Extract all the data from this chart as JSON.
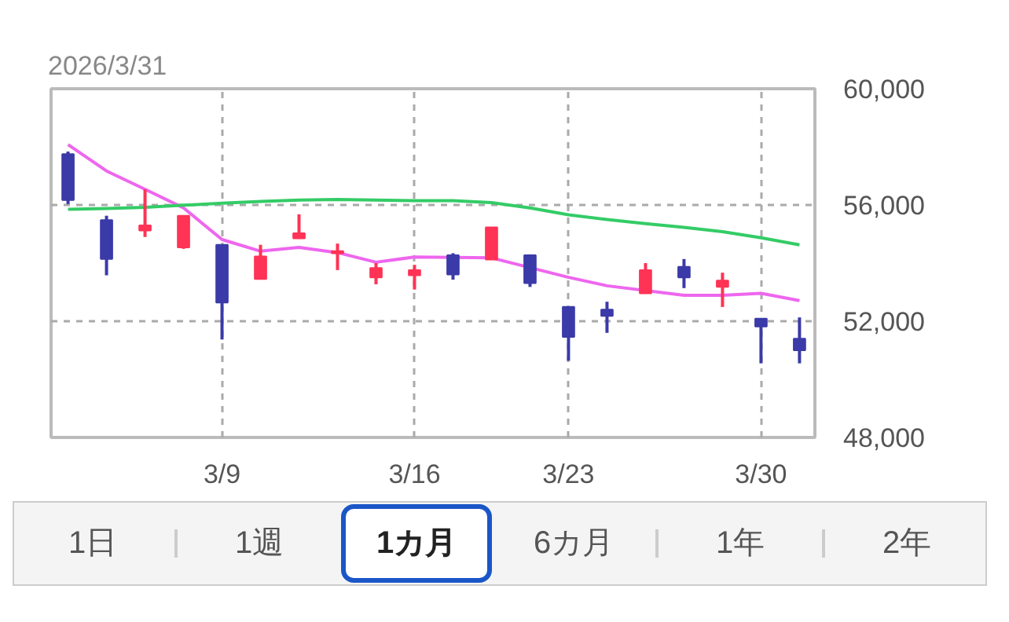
{
  "chart_data": {
    "type": "candlestick",
    "title": "2026/3/31",
    "annotations": [
      "1日",
      "1週",
      "1カ月",
      "6カ月",
      "1年",
      "2年"
    ],
    "categories": [
      null,
      null,
      null,
      null,
      "3/9",
      null,
      null,
      null,
      null,
      "3/16",
      null,
      null,
      null,
      "3/23",
      null,
      null,
      null,
      null,
      "3/30",
      null
    ],
    "ohlc": [
      [
        57750,
        57840,
        56030,
        56170
      ],
      [
        55480,
        55630,
        53580,
        54140
      ],
      [
        55120,
        56540,
        54900,
        55300
      ],
      [
        54540,
        55630,
        54490,
        55630
      ],
      [
        54630,
        54630,
        51370,
        52640
      ],
      [
        53450,
        54630,
        53450,
        54230
      ],
      [
        54850,
        55680,
        54850,
        55030
      ],
      [
        54340,
        54670,
        53760,
        54410
      ],
      [
        53510,
        54000,
        53270,
        53830
      ],
      [
        53580,
        53940,
        53090,
        53760
      ],
      [
        54270,
        54340,
        53430,
        53610
      ],
      [
        54120,
        55230,
        54120,
        55230
      ],
      [
        54270,
        54300,
        53180,
        53310
      ],
      [
        52490,
        52490,
        50640,
        51460
      ],
      [
        52400,
        52670,
        51600,
        52180
      ],
      [
        52960,
        54000,
        52960,
        53760
      ],
      [
        53870,
        54140,
        53140,
        53510
      ],
      [
        53180,
        53670,
        52490,
        53400
      ],
      [
        52090,
        52090,
        50550,
        51820
      ],
      [
        51400,
        52130,
        50550,
        51000
      ]
    ],
    "colors": [
      "#3a3aa8",
      "#3a3aa8",
      "#ff3355",
      "#ff3355",
      "#3a3aa8",
      "#ff3355",
      "#ff3355",
      "#ff3355",
      "#ff3355",
      "#ff3355",
      "#3a3aa8",
      "#ff3355",
      "#3a3aa8",
      "#3a3aa8",
      "#3a3aa8",
      "#ff3355",
      "#3a3aa8",
      "#ff3355",
      "#3a3aa8",
      "#3a3aa8"
    ],
    "series": [
      {
        "type": "line",
        "color": "#ee66ee",
        "values": [
          58080,
          57170,
          56540,
          55900,
          54810,
          54410,
          54540,
          54360,
          54030,
          54210,
          null,
          54180,
          null,
          53510,
          53220,
          null,
          52890,
          52890,
          52960,
          52710
        ]
      },
      {
        "type": "line",
        "color": "#33cc66",
        "values": [
          55850,
          55880,
          55920,
          55990,
          56060,
          56120,
          56170,
          56190,
          56170,
          56150,
          56150,
          56080,
          55900,
          55660,
          55500,
          55360,
          55230,
          55080,
          54870,
          54630
        ]
      }
    ],
    "ylim": [
      48000,
      60000
    ],
    "yticks": [
      {
        "value": 48000,
        "label": "48,000"
      },
      {
        "value": 52000,
        "label": "52,000"
      },
      {
        "value": 56000,
        "label": "56,000"
      },
      {
        "value": 60000,
        "label": "60,000"
      }
    ],
    "grid": true
  }
}
